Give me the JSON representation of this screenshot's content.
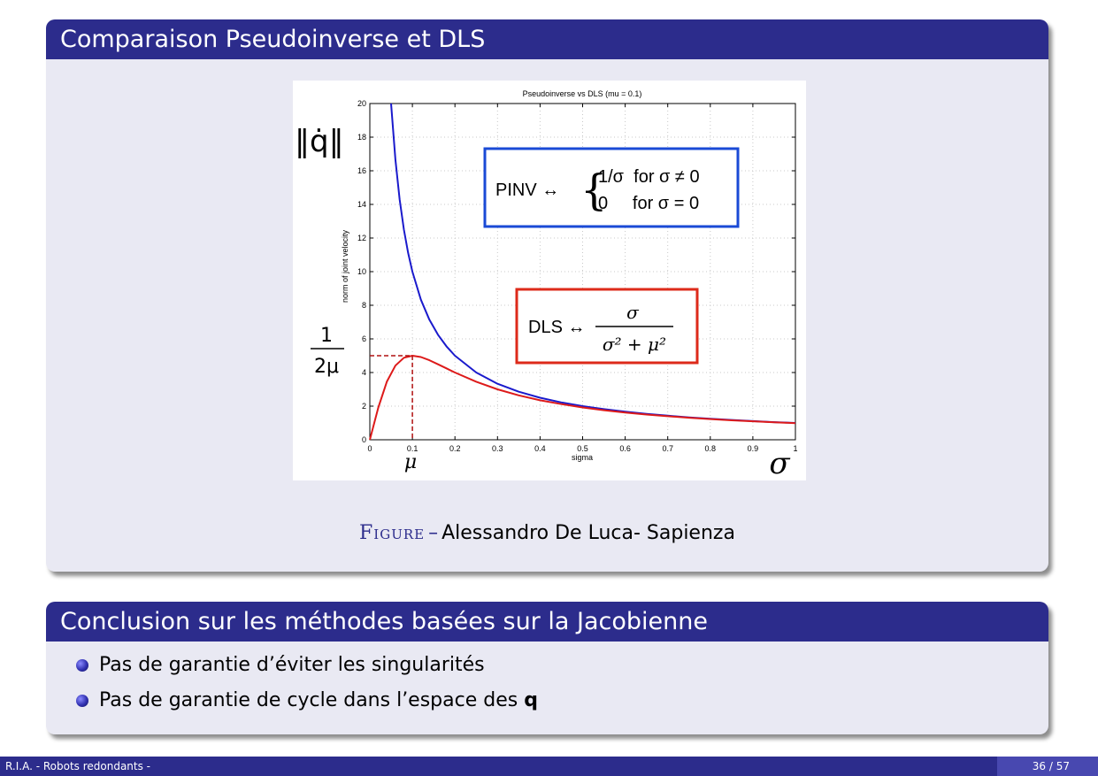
{
  "block1": {
    "title": "Comparaison Pseudoinverse et DLS",
    "caption_label": "Figure",
    "caption_sep": "–",
    "caption_text": "Alessandro De Luca- Sapienza"
  },
  "chart_data": {
    "type": "line",
    "title": "Pseudoinverse vs DLS (mu = 0.1)",
    "xlabel": "sigma",
    "ylabel": "norm of joint velocity",
    "xlim": [
      0,
      1
    ],
    "ylim": [
      0,
      20
    ],
    "x_ticks": [
      "0",
      "0.1",
      "0.2",
      "0.3",
      "0.4",
      "0.5",
      "0.6",
      "0.7",
      "0.8",
      "0.9",
      "1"
    ],
    "y_ticks": [
      "0",
      "2",
      "4",
      "6",
      "8",
      "10",
      "12",
      "14",
      "16",
      "18",
      "20"
    ],
    "grid": true,
    "mu": 0.1,
    "series": [
      {
        "color": "#1a1acc",
        "x": [
          0.05,
          0.06,
          0.07,
          0.08,
          0.09,
          0.1,
          0.12,
          0.14,
          0.16,
          0.18,
          0.2,
          0.25,
          0.3,
          0.35,
          0.4,
          0.45,
          0.5,
          0.55,
          0.6,
          0.65,
          0.7,
          0.75,
          0.8,
          0.85,
          0.9,
          0.95,
          1.0
        ],
        "y": [
          20,
          16.67,
          14.29,
          12.5,
          11.11,
          10,
          8.33,
          7.14,
          6.25,
          5.56,
          5,
          4,
          3.33,
          2.86,
          2.5,
          2.22,
          2,
          1.82,
          1.67,
          1.54,
          1.43,
          1.33,
          1.25,
          1.18,
          1.11,
          1.05,
          1
        ]
      },
      {
        "color": "#dd1a1a",
        "x": [
          0,
          0.02,
          0.04,
          0.06,
          0.08,
          0.1,
          0.12,
          0.14,
          0.16,
          0.18,
          0.2,
          0.25,
          0.3,
          0.35,
          0.4,
          0.45,
          0.5,
          0.55,
          0.6,
          0.65,
          0.7,
          0.75,
          0.8,
          0.85,
          0.9,
          0.95,
          1.0
        ],
        "y": [
          0,
          1.92,
          3.45,
          4.41,
          4.88,
          5,
          4.92,
          4.73,
          4.49,
          4.25,
          4,
          3.45,
          3,
          2.64,
          2.35,
          2.12,
          1.92,
          1.76,
          1.62,
          1.5,
          1.4,
          1.31,
          1.23,
          1.16,
          1.1,
          1.04,
          0.99
        ]
      }
    ],
    "annotations": {
      "y_axis_symbol": "‖q̇‖",
      "peak_num": "1",
      "peak_den": "2μ",
      "x_mu": "μ",
      "x_sigma": "σ",
      "pinv_lhs": "PINV ↔",
      "pinv_case1": "1/σ  for σ ≠ 0",
      "pinv_case2": "0     for σ = 0",
      "dls_lhs": "DLS ↔",
      "dls_num": "σ",
      "dls_den": "σ² + μ²"
    }
  },
  "block2": {
    "title": "Conclusion sur les méthodes basées sur la Jacobienne",
    "item1": "Pas de garantie d’éviter les singularités",
    "item2_prefix": "Pas de garantie de cycle dans l’espace des ",
    "item2_bold": "q"
  },
  "footer": {
    "left": "R.I.A. - Robots redondants -",
    "right": "36 / 57"
  }
}
